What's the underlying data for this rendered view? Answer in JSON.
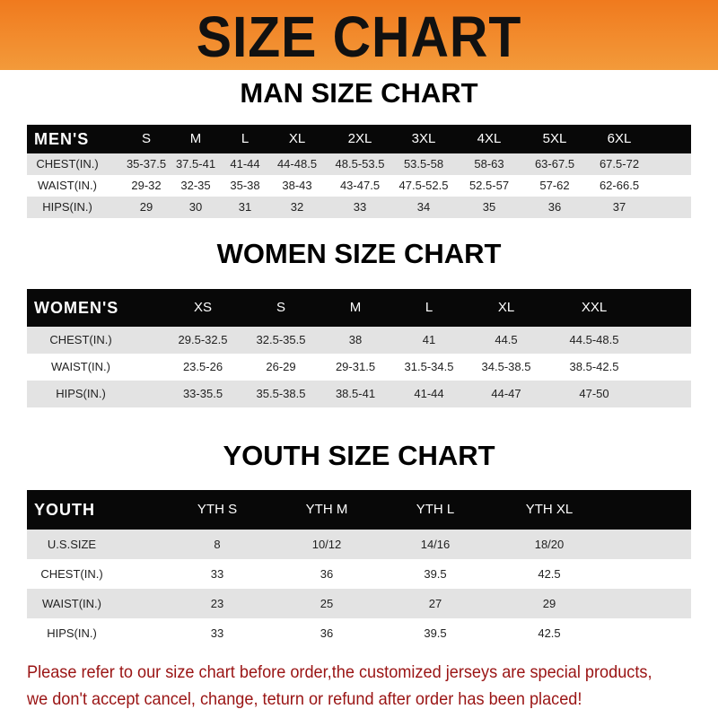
{
  "banner_title": "SIZE CHART",
  "men": {
    "title": "MAN SIZE CHART",
    "header": [
      "MEN'S",
      "S",
      "M",
      "L",
      "XL",
      "2XL",
      "3XL",
      "4XL",
      "5XL",
      "6XL"
    ],
    "rows": [
      [
        "CHEST(IN.)",
        "35-37.5",
        "37.5-41",
        "41-44",
        "44-48.5",
        "48.5-53.5",
        "53.5-58",
        "58-63",
        "63-67.5",
        "67.5-72"
      ],
      [
        "WAIST(IN.)",
        "29-32",
        "32-35",
        "35-38",
        "38-43",
        "43-47.5",
        "47.5-52.5",
        "52.5-57",
        "57-62",
        "62-66.5"
      ],
      [
        "HIPS(IN.)",
        "29",
        "30",
        "31",
        "32",
        "33",
        "34",
        "35",
        "36",
        "37"
      ]
    ]
  },
  "women": {
    "title": "WOMEN SIZE CHART",
    "header": [
      "WOMEN'S",
      "XS",
      "S",
      "M",
      "L",
      "XL",
      "XXL"
    ],
    "rows": [
      [
        "CHEST(IN.)",
        "29.5-32.5",
        "32.5-35.5",
        "38",
        "41",
        "44.5",
        "44.5-48.5"
      ],
      [
        "WAIST(IN.)",
        "23.5-26",
        "26-29",
        "29-31.5",
        "31.5-34.5",
        "34.5-38.5",
        "38.5-42.5"
      ],
      [
        "HIPS(IN.)",
        "33-35.5",
        "35.5-38.5",
        "38.5-41",
        "41-44",
        "44-47",
        "47-50"
      ]
    ]
  },
  "youth": {
    "title": "YOUTH SIZE CHART",
    "header": [
      "YOUTH",
      "YTH S",
      "YTH M",
      "YTH L",
      "YTH XL"
    ],
    "rows": [
      [
        "U.S.SIZE",
        "8",
        "10/12",
        "14/16",
        "18/20"
      ],
      [
        "CHEST(IN.)",
        "33",
        "36",
        "39.5",
        "42.5"
      ],
      [
        "WAIST(IN.)",
        "23",
        "25",
        "27",
        "29"
      ],
      [
        "HIPS(IN.)",
        "33",
        "36",
        "39.5",
        "42.5"
      ]
    ]
  },
  "notice": [
    "Please refer to our size chart before order,the customized jerseys are special products,",
    "we don't accept cancel, change, teturn or refund after order has been placed!"
  ],
  "colors": {
    "banner": "#f07a1e",
    "header_row": "#080808",
    "stripe": "#e3e3e3",
    "notice": "#9a1414"
  }
}
